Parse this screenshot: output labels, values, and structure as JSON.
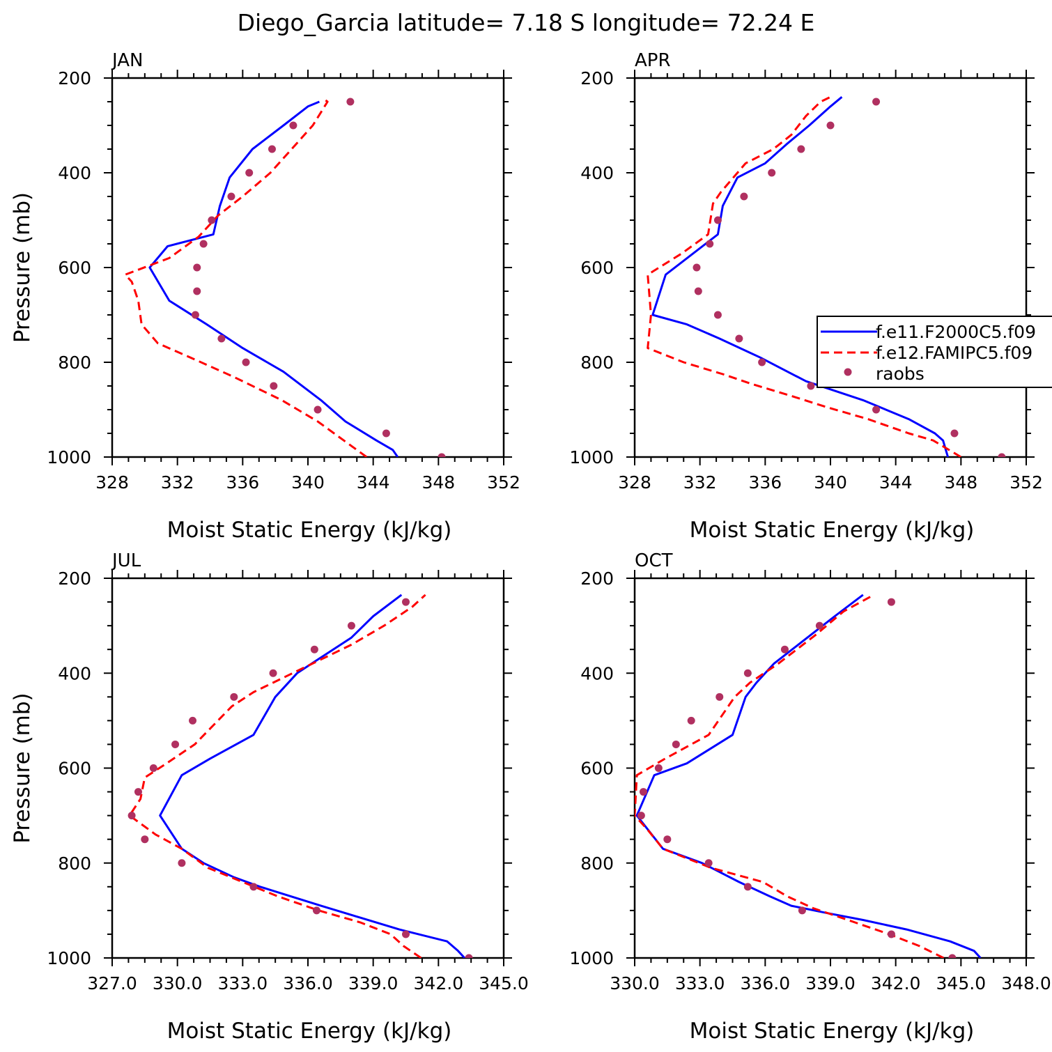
{
  "figure": {
    "title": "Diego_Garcia  latitude= 7.18 S longitude= 72.24 E",
    "colors": {
      "model1": "#0000ff",
      "model2": "#ff0000",
      "obs": "#b03060"
    }
  },
  "legend": {
    "entries": [
      "f.e11.F2000C5.f09",
      "f.e12.FAMIPC5.f09",
      "raobs"
    ],
    "placement": "right-middle of APR panel (clipped at figure edge)"
  },
  "chart_data": [
    {
      "type": "line",
      "panel": "JAN",
      "title": "JAN",
      "xlabel": "Moist Static Energy (kJ/kg)",
      "ylabel": "Pressure (mb)",
      "xlim": [
        328,
        352
      ],
      "ylim": [
        1000,
        200
      ],
      "xticks": [
        "328",
        "332",
        "336",
        "340",
        "344",
        "348",
        "352"
      ],
      "yticks": [
        "200",
        "400",
        "600",
        "800",
        "1000"
      ],
      "series": [
        {
          "name": "f.e11.F2000C5.f09",
          "style": "solid",
          "points": [
            [
              345.5,
              1000
            ],
            [
              345.2,
              985
            ],
            [
              344.2,
              965
            ],
            [
              342.3,
              925
            ],
            [
              340.8,
              880
            ],
            [
              338.5,
              820
            ],
            [
              336,
              770
            ],
            [
              333.8,
              720
            ],
            [
              331.5,
              670
            ],
            [
              330.3,
              600
            ],
            [
              331.4,
              555
            ],
            [
              334.2,
              530
            ],
            [
              334.6,
              470
            ],
            [
              335.2,
              410
            ],
            [
              336.6,
              350
            ],
            [
              338.5,
              300
            ],
            [
              340,
              260
            ],
            [
              340.7,
              250
            ]
          ]
        },
        {
          "name": "f.e12.FAMIPC5.f09",
          "style": "dashed",
          "points": [
            [
              343.6,
              1000
            ],
            [
              342.2,
              965
            ],
            [
              340.6,
              925
            ],
            [
              338.4,
              880
            ],
            [
              335.4,
              830
            ],
            [
              332.8,
              790
            ],
            [
              330.8,
              760
            ],
            [
              329.8,
              720
            ],
            [
              329.6,
              670
            ],
            [
              329.2,
              630
            ],
            [
              328.8,
              615
            ],
            [
              331.5,
              580
            ],
            [
              333.3,
              535
            ],
            [
              334.5,
              490
            ],
            [
              336,
              450
            ],
            [
              337.7,
              400
            ],
            [
              339,
              350
            ],
            [
              340.3,
              300
            ],
            [
              341.2,
              250
            ],
            [
              341,
              245
            ]
          ]
        },
        {
          "name": "raobs",
          "style": "markers",
          "points": [
            [
              348.2,
              1000
            ],
            [
              344.8,
              950
            ],
            [
              340.6,
              900
            ],
            [
              337.9,
              850
            ],
            [
              336.2,
              800
            ],
            [
              334.7,
              750
            ],
            [
              333.1,
              700
            ],
            [
              333.2,
              650
            ],
            [
              333.2,
              600
            ],
            [
              333.6,
              550
            ],
            [
              334.1,
              500
            ],
            [
              335.3,
              450
            ],
            [
              336.4,
              400
            ],
            [
              337.8,
              350
            ],
            [
              339.1,
              300
            ],
            [
              342.6,
              250
            ]
          ]
        }
      ]
    },
    {
      "type": "line",
      "panel": "APR",
      "title": "APR",
      "xlabel": "Moist Static Energy (kJ/kg)",
      "ylabel": "",
      "xlim": [
        328,
        352
      ],
      "ylim": [
        1000,
        200
      ],
      "xticks": [
        "328",
        "332",
        "336",
        "340",
        "344",
        "348",
        "352"
      ],
      "yticks": [
        "200",
        "400",
        "600",
        "800",
        "1000"
      ],
      "series": [
        {
          "name": "f.e11.F2000C5.f09",
          "style": "solid",
          "points": [
            [
              347.2,
              1000
            ],
            [
              346.9,
              965
            ],
            [
              346.4,
              950
            ],
            [
              344.8,
              920
            ],
            [
              342,
              880
            ],
            [
              338.5,
              840
            ],
            [
              335.7,
              790
            ],
            [
              333.2,
              750
            ],
            [
              331.2,
              720
            ],
            [
              329.1,
              700
            ],
            [
              329.9,
              615
            ],
            [
              333.1,
              530
            ],
            [
              333.4,
              470
            ],
            [
              334.3,
              410
            ],
            [
              336,
              380
            ],
            [
              337.3,
              340
            ],
            [
              338.7,
              300
            ],
            [
              340,
              260
            ],
            [
              340.7,
              240
            ]
          ]
        },
        {
          "name": "f.e12.FAMIPC5.f09",
          "style": "dashed",
          "points": [
            [
              348,
              1000
            ],
            [
              346.3,
              965
            ],
            [
              344.8,
              950
            ],
            [
              342.3,
              920
            ],
            [
              339.8,
              895
            ],
            [
              337.5,
              870
            ],
            [
              335.1,
              845
            ],
            [
              333.4,
              825
            ],
            [
              331,
              800
            ],
            [
              329.9,
              785
            ],
            [
              328.8,
              770
            ],
            [
              329,
              700
            ],
            [
              328.8,
              615
            ],
            [
              330.9,
              570
            ],
            [
              332.5,
              530
            ],
            [
              332.8,
              465
            ],
            [
              333.3,
              440
            ],
            [
              334.8,
              380
            ],
            [
              336.5,
              350
            ],
            [
              337.6,
              320
            ],
            [
              338.5,
              280
            ],
            [
              339.4,
              250
            ],
            [
              340,
              240
            ]
          ]
        },
        {
          "name": "raobs",
          "style": "markers",
          "points": [
            [
              350.5,
              1000
            ],
            [
              347.6,
              950
            ],
            [
              342.8,
              900
            ],
            [
              338.8,
              850
            ],
            [
              335.8,
              800
            ],
            [
              334.4,
              750
            ],
            [
              333.1,
              700
            ],
            [
              331.9,
              650
            ],
            [
              331.8,
              600
            ],
            [
              332.6,
              550
            ],
            [
              333.1,
              500
            ],
            [
              334.7,
              450
            ],
            [
              336.4,
              400
            ],
            [
              338.2,
              350
            ],
            [
              340,
              300
            ],
            [
              342.8,
              250
            ]
          ]
        }
      ]
    },
    {
      "type": "line",
      "panel": "JUL",
      "title": "JUL",
      "xlabel": "Moist Static Energy (kJ/kg)",
      "ylabel": "Pressure (mb)",
      "xlim": [
        327,
        345
      ],
      "ylim": [
        1000,
        200
      ],
      "xticks": [
        "327.0",
        "330.0",
        "333.0",
        "336.0",
        "339.0",
        "342.0",
        "345.0"
      ],
      "yticks": [
        "200",
        "400",
        "600",
        "800",
        "1000"
      ],
      "series": [
        {
          "name": "f.e11.F2000C5.f09",
          "style": "solid",
          "points": [
            [
              343.2,
              1000
            ],
            [
              342.9,
              985
            ],
            [
              342.4,
              965
            ],
            [
              340.2,
              940
            ],
            [
              338.4,
              915
            ],
            [
              336.6,
              890
            ],
            [
              335.2,
              870
            ],
            [
              333.8,
              850
            ],
            [
              332.6,
              830
            ],
            [
              331.2,
              800
            ],
            [
              330.2,
              770
            ],
            [
              329.2,
              700
            ],
            [
              330.2,
              615
            ],
            [
              331.5,
              580
            ],
            [
              333.5,
              530
            ],
            [
              334.5,
              450
            ],
            [
              335.5,
              400
            ],
            [
              336.5,
              370
            ],
            [
              338,
              325
            ],
            [
              339,
              280
            ],
            [
              340.3,
              235
            ]
          ]
        },
        {
          "name": "f.e12.FAMIPC5.f09",
          "style": "dashed",
          "points": [
            [
              341.2,
              1000
            ],
            [
              340.4,
              975
            ],
            [
              339.8,
              950
            ],
            [
              338.4,
              925
            ],
            [
              336.5,
              900
            ],
            [
              334.6,
              870
            ],
            [
              333,
              840
            ],
            [
              331.4,
              810
            ],
            [
              330.2,
              770
            ],
            [
              329,
              740
            ],
            [
              327.8,
              700
            ],
            [
              328.3,
              665
            ],
            [
              328.5,
              620
            ],
            [
              329.5,
              590
            ],
            [
              330.8,
              550
            ],
            [
              332.5,
              470
            ],
            [
              333.5,
              440
            ],
            [
              336.2,
              380
            ],
            [
              338,
              340
            ],
            [
              339.5,
              300
            ],
            [
              340.8,
              260
            ],
            [
              341.4,
              235
            ]
          ]
        },
        {
          "name": "raobs",
          "style": "markers",
          "points": [
            [
              343.4,
              1000
            ],
            [
              340.5,
              950
            ],
            [
              336.4,
              900
            ],
            [
              333.5,
              850
            ],
            [
              330.2,
              800
            ],
            [
              328.5,
              750
            ],
            [
              327.9,
              700
            ],
            [
              328.2,
              650
            ],
            [
              328.9,
              600
            ],
            [
              329.9,
              550
            ],
            [
              330.7,
              500
            ],
            [
              332.6,
              450
            ],
            [
              334.4,
              400
            ],
            [
              336.3,
              350
            ],
            [
              338,
              300
            ],
            [
              340.5,
              250
            ]
          ]
        }
      ]
    },
    {
      "type": "line",
      "panel": "OCT",
      "title": "OCT",
      "xlabel": "Moist Static Energy (kJ/kg)",
      "ylabel": "",
      "xlim": [
        330,
        348
      ],
      "ylim": [
        1000,
        200
      ],
      "xticks": [
        "330.0",
        "333.0",
        "336.0",
        "339.0",
        "342.0",
        "345.0",
        "348.0"
      ],
      "yticks": [
        "200",
        "400",
        "600",
        "800",
        "1000"
      ],
      "series": [
        {
          "name": "f.e11.F2000C5.f09",
          "style": "solid",
          "points": [
            [
              345.9,
              1000
            ],
            [
              345.6,
              985
            ],
            [
              344.5,
              965
            ],
            [
              342.5,
              940
            ],
            [
              340.5,
              920
            ],
            [
              338.8,
              905
            ],
            [
              337.2,
              890
            ],
            [
              336.2,
              870
            ],
            [
              334.8,
              840
            ],
            [
              333.1,
              800
            ],
            [
              331.3,
              770
            ],
            [
              330.1,
              700
            ],
            [
              330.9,
              615
            ],
            [
              332.4,
              590
            ],
            [
              334.5,
              530
            ],
            [
              335.1,
              450
            ],
            [
              335.6,
              420
            ],
            [
              336.4,
              380
            ],
            [
              337.8,
              330
            ],
            [
              339.2,
              280
            ],
            [
              340.5,
              235
            ]
          ]
        },
        {
          "name": "f.e12.FAMIPC5.f09",
          "style": "dashed",
          "points": [
            [
              344.2,
              1000
            ],
            [
              343.1,
              975
            ],
            [
              341.7,
              950
            ],
            [
              339.8,
              920
            ],
            [
              338.2,
              895
            ],
            [
              337,
              870
            ],
            [
              335.9,
              840
            ],
            [
              333.5,
              810
            ],
            [
              332.4,
              790
            ],
            [
              331.3,
              770
            ],
            [
              330.6,
              730
            ],
            [
              330,
              700
            ],
            [
              330.1,
              615
            ],
            [
              331.4,
              580
            ],
            [
              333.4,
              530
            ],
            [
              334.6,
              450
            ],
            [
              335.3,
              420
            ],
            [
              336.6,
              380
            ],
            [
              338.3,
              320
            ],
            [
              339.6,
              270
            ],
            [
              341,
              235
            ]
          ]
        },
        {
          "name": "raobs",
          "style": "markers",
          "points": [
            [
              344.6,
              1000
            ],
            [
              341.8,
              950
            ],
            [
              337.7,
              900
            ],
            [
              335.2,
              850
            ],
            [
              333.4,
              800
            ],
            [
              331.5,
              750
            ],
            [
              330.3,
              700
            ],
            [
              330.4,
              650
            ],
            [
              331.1,
              600
            ],
            [
              331.9,
              550
            ],
            [
              332.6,
              500
            ],
            [
              333.9,
              450
            ],
            [
              335.2,
              400
            ],
            [
              336.9,
              350
            ],
            [
              338.5,
              300
            ],
            [
              341.8,
              250
            ]
          ]
        }
      ]
    }
  ]
}
